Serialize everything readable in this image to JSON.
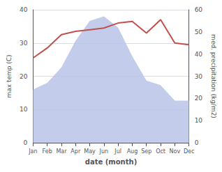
{
  "chart_data": {
    "type": "line",
    "categories": [
      "Jan",
      "Feb",
      "Mar",
      "Apr",
      "May",
      "Jun",
      "Jul",
      "Aug",
      "Sep",
      "Oct",
      "Nov",
      "Dec"
    ],
    "xlabel": "date (month)",
    "ylabel": "max temp (C)",
    "y2label": "med. precipitation (kg/m2)",
    "series": [
      {
        "type": "area",
        "axis": "y2",
        "color": "#b8c4e8",
        "values": [
          24,
          27,
          34,
          46,
          55,
          57,
          52,
          39,
          28,
          26,
          19,
          19
        ]
      },
      {
        "type": "line",
        "color": "#c0504d",
        "values": [
          25.5,
          28.5,
          32.5,
          33.5,
          34.0,
          34.5,
          36.0,
          36.5,
          33.0,
          37.0,
          30.0,
          29.5
        ]
      }
    ],
    "ylim": [
      0,
      40
    ],
    "yticks": [
      0,
      10,
      20,
      30,
      40
    ],
    "y2lim": [
      0,
      60
    ],
    "y2ticks": [
      0,
      10,
      20,
      30,
      40,
      50,
      60
    ],
    "grid": true
  }
}
